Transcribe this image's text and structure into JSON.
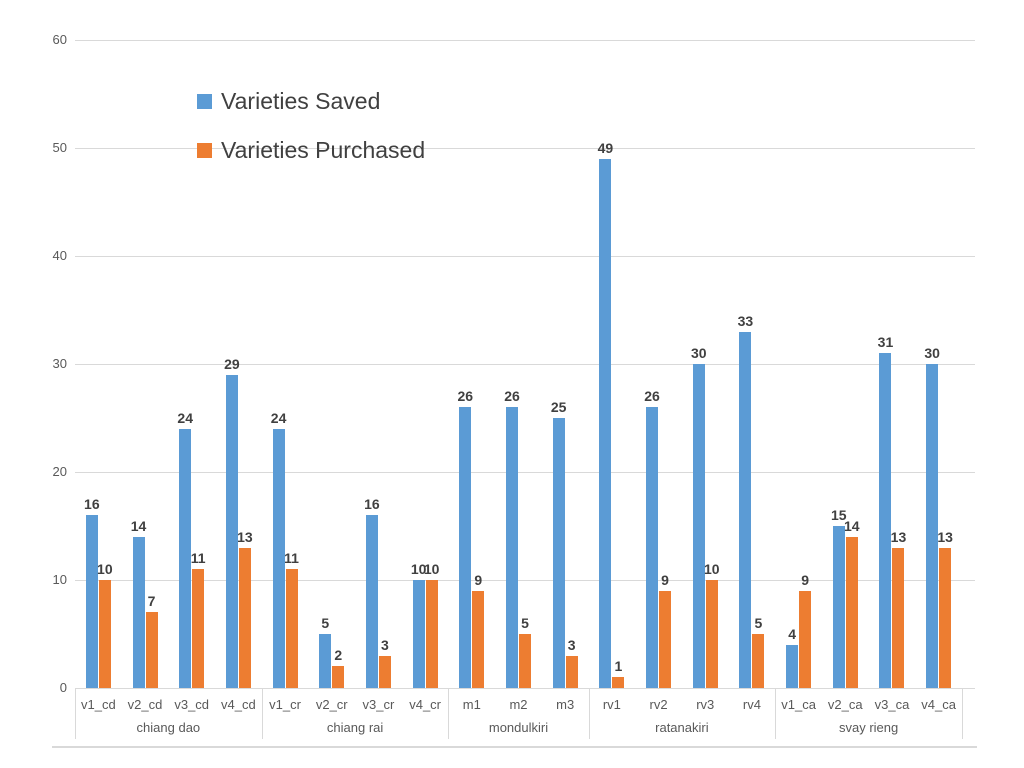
{
  "chart_data": {
    "type": "bar",
    "title": "",
    "legend_position": "inside-top-left",
    "grid": true,
    "data_labels": true,
    "y_axis": {
      "min": 0,
      "max": 60,
      "step": 10,
      "ticks": [
        0,
        10,
        20,
        30,
        40,
        50,
        60
      ]
    },
    "groups": [
      {
        "label": "chiang dao",
        "categories": [
          "v1_cd",
          "v2_cd",
          "v3_cd",
          "v4_cd"
        ]
      },
      {
        "label": "chiang rai",
        "categories": [
          "v1_cr",
          "v2_cr",
          "v3_cr",
          "v4_cr"
        ]
      },
      {
        "label": "mondulkiri",
        "categories": [
          "m1",
          "m2",
          "m3"
        ]
      },
      {
        "label": "ratanakiri",
        "categories": [
          "rv1",
          "rv2",
          "rv3",
          "rv4"
        ]
      },
      {
        "label": "svay rieng",
        "categories": [
          "v1_ca",
          "v2_ca",
          "v3_ca",
          "v4_ca"
        ]
      }
    ],
    "series": [
      {
        "name": "Varieties Saved",
        "color": "#5B9BD5",
        "values": [
          16,
          14,
          24,
          29,
          24,
          5,
          16,
          10,
          26,
          26,
          25,
          49,
          26,
          30,
          33,
          4,
          15,
          31,
          30
        ]
      },
      {
        "name": "Varieties Purchased",
        "color": "#ED7D31",
        "values": [
          10,
          7,
          11,
          13,
          11,
          2,
          3,
          10,
          9,
          5,
          3,
          1,
          9,
          10,
          5,
          9,
          14,
          13,
          13
        ]
      }
    ]
  },
  "colors": {
    "saved": "#5B9BD5",
    "purchased": "#ED7D31",
    "gridline": "#D9D9D9",
    "axis_divider": "#D9D9D9",
    "bottom_rule": "#D9D9D9",
    "tick_text": "#595959",
    "category_text": "#595959",
    "data_label_text": "#404040",
    "legend_text": "#404040",
    "background": "#FFFFFF"
  }
}
